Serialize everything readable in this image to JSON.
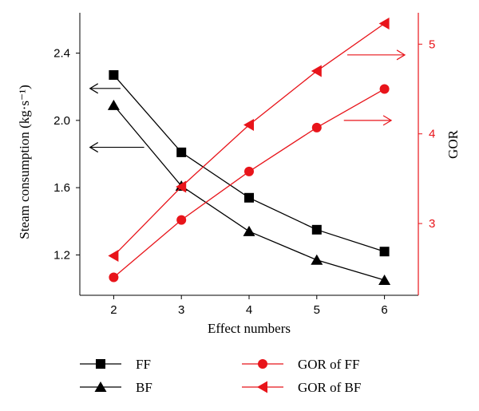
{
  "chart_data": {
    "type": "line",
    "xlabel": "Effect numbers",
    "ylabel_left": "Steam consumption (kg·s⁻¹)",
    "ylabel_right": "GOR",
    "x": [
      2,
      3,
      4,
      5,
      6
    ],
    "x_ticks": [
      "2",
      "3",
      "4",
      "5",
      "6"
    ],
    "xlim": [
      1.5,
      6.5
    ],
    "ylim_left": [
      0.96,
      2.64
    ],
    "yticks_left": [
      "1.2",
      "1.6",
      "2.0",
      "2.4"
    ],
    "ylim_right": [
      2.2,
      5.35
    ],
    "yticks_right": [
      "3",
      "4",
      "5"
    ],
    "grid": false,
    "legend_position": "bottom",
    "series": [
      {
        "name": "FF",
        "axis": "left",
        "marker": "square",
        "color": "#000000",
        "values": [
          2.27,
          1.81,
          1.54,
          1.35,
          1.22
        ]
      },
      {
        "name": "BF",
        "axis": "left",
        "marker": "triangle-up",
        "color": "#000000",
        "values": [
          2.09,
          1.61,
          1.34,
          1.17,
          1.05
        ]
      },
      {
        "name": "GOR of FF",
        "axis": "right",
        "marker": "circle",
        "color": "#e8141a",
        "values": [
          2.4,
          3.04,
          3.58,
          4.07,
          4.5
        ]
      },
      {
        "name": "GOR of BF",
        "axis": "right",
        "marker": "triangle-left",
        "color": "#e8141a",
        "values": [
          2.64,
          3.41,
          4.1,
          4.7,
          5.23
        ]
      }
    ],
    "annotations": [
      {
        "type": "arrow",
        "direction": "left",
        "axis": "left",
        "y": 2.19,
        "x_from": 2.1,
        "x_to": 1.65,
        "color": "#000000"
      },
      {
        "type": "arrow",
        "direction": "left",
        "axis": "left",
        "y": 1.84,
        "x_from": 2.45,
        "x_to": 1.65,
        "color": "#000000"
      },
      {
        "type": "arrow",
        "direction": "right",
        "axis": "right",
        "y": 4.88,
        "x_from": 5.45,
        "x_to": 6.3,
        "color": "#e8141a"
      },
      {
        "type": "arrow",
        "direction": "right",
        "axis": "right",
        "y": 4.15,
        "x_from": 5.4,
        "x_to": 6.1,
        "color": "#e8141a"
      }
    ]
  },
  "colors": {
    "black": "#000000",
    "red": "#e8141a"
  }
}
